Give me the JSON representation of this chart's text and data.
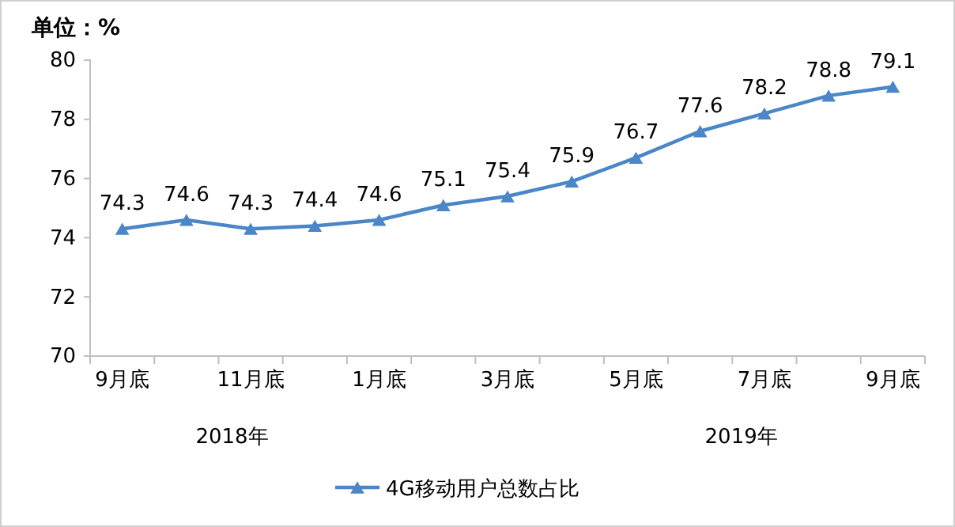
{
  "chart_data": {
    "type": "line",
    "ylabel": "单位：%",
    "categories": [
      "9月底",
      null,
      "11月底",
      null,
      "1月底",
      null,
      "3月底",
      null,
      "5月底",
      null,
      "7月底",
      null,
      "9月底"
    ],
    "series": [
      {
        "name": "4G移动用户总数占比",
        "color": "#4a86c8",
        "values": [
          74.3,
          74.6,
          74.3,
          74.4,
          74.6,
          75.1,
          75.4,
          75.9,
          76.7,
          77.6,
          78.2,
          78.8,
          79.1
        ]
      }
    ],
    "ylim": [
      70,
      80
    ],
    "yticks": [
      70,
      72,
      74,
      76,
      78,
      80
    ],
    "data_labels": true,
    "marker": "triangle",
    "legend": "bottom",
    "grid": false,
    "annotations": [
      "2018年",
      "2019年"
    ]
  }
}
